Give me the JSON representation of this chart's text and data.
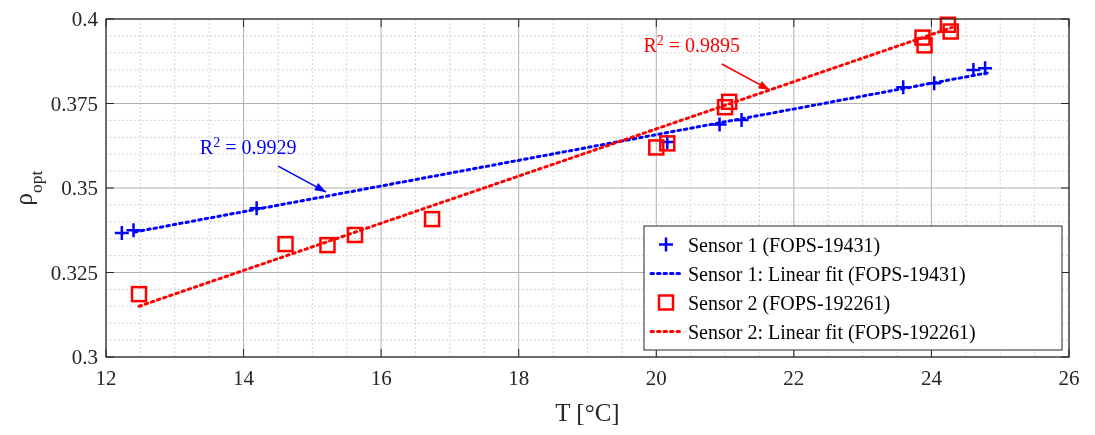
{
  "chart_data": {
    "type": "scatter",
    "xlabel": "T [°C]",
    "ylabel": "ρ$_{opt}$",
    "xlim": [
      12,
      26
    ],
    "xticks": [
      12,
      14,
      16,
      18,
      20,
      22,
      24,
      26
    ],
    "ylim": [
      0.3,
      0.4
    ],
    "yticks": [
      0.3,
      0.325,
      0.35,
      0.375,
      0.4
    ],
    "grid": true,
    "legend": "bottom right",
    "series": [
      {
        "name": "Sensor 1 (FOPS-19431)",
        "marker": "cross",
        "color": "#0000ff",
        "x": [
          12.23,
          12.4,
          14.19,
          20.16,
          20.92,
          21.24,
          23.59,
          24.04,
          24.61,
          24.78
        ],
        "values": [
          0.3367,
          0.3375,
          0.344,
          0.3636,
          0.3688,
          0.3701,
          0.3798,
          0.381,
          0.3849,
          0.3854
        ]
      },
      {
        "name": "Sensor 1: Linear fit (FOPS-19431)",
        "type": "line",
        "line_style": "dotted",
        "color": "#0000ff",
        "x": [
          12.42,
          24.85
        ],
        "values": [
          0.337,
          0.3842
        ]
      },
      {
        "name": "Sensor 2 (FOPS-192261)",
        "marker": "square",
        "color": "#ff0000",
        "x": [
          12.48,
          14.61,
          15.22,
          15.62,
          16.74,
          20.0,
          20.16,
          21.0,
          21.06,
          23.87,
          23.9,
          24.24,
          24.28
        ],
        "values": [
          0.3186,
          0.3334,
          0.3331,
          0.3361,
          0.3408,
          0.362,
          0.3632,
          0.3739,
          0.3755,
          0.3945,
          0.3922,
          0.3983,
          0.3963
        ]
      },
      {
        "name": "Sensor 2: Linear fit (FOPS-192261)",
        "type": "line",
        "line_style": "dotted",
        "color": "#ff0000",
        "x": [
          12.48,
          24.3
        ],
        "values": [
          0.315,
          0.3975
        ]
      }
    ],
    "annotations": [
      {
        "text": "R$^{2}$ = 0.9929",
        "x": 15.2,
        "y": 0.3488
      },
      {
        "text": "R$^{2}$ = 0.9895",
        "x": 21.65,
        "y": 0.379
      }
    ]
  }
}
